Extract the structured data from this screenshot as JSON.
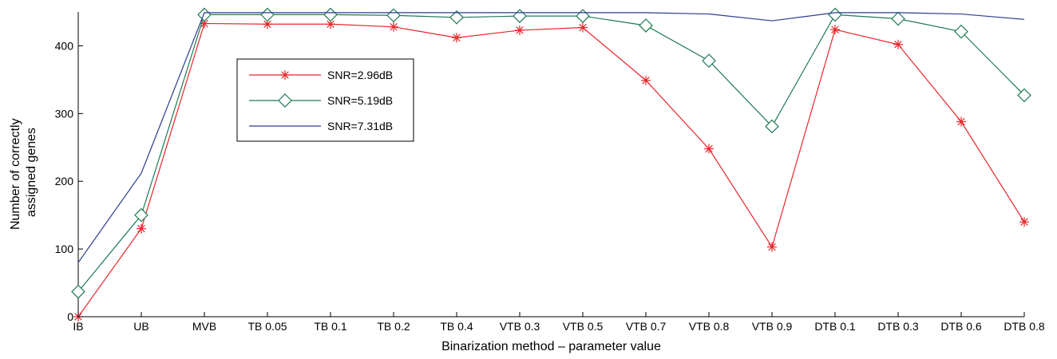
{
  "chart_data": {
    "type": "line",
    "title": "",
    "xlabel": "Binarization method – parameter value",
    "ylabel_lines": [
      "Number of correctly",
      "assigned genes"
    ],
    "categories": [
      "IB",
      "UB",
      "MVB",
      "TB 0.05",
      "TB 0.1",
      "TB 0.2",
      "TB 0.4",
      "VTB 0.3",
      "VTB 0.5",
      "VTB 0.7",
      "VTB 0.8",
      "VTB 0.9",
      "DTB 0.1",
      "DTB 0.3",
      "DTB 0.6",
      "DTB 0.8"
    ],
    "yticks": [
      0,
      100,
      200,
      300,
      400
    ],
    "ylim": [
      0,
      450
    ],
    "grid": false,
    "legend_position": "top-left-inside",
    "series": [
      {
        "name": "SNR=2.96dB",
        "color": "#e8262b",
        "marker": "asterisk",
        "values": [
          0,
          130,
          433,
          432,
          432,
          428,
          412,
          423,
          427,
          349,
          248,
          103,
          424,
          402,
          288,
          140
        ]
      },
      {
        "name": "SNR=5.19dB",
        "color": "#1f7a52",
        "marker": "diamond",
        "values": [
          37,
          150,
          446,
          446,
          446,
          445,
          442,
          444,
          444,
          430,
          378,
          281,
          446,
          440,
          421,
          327
        ]
      },
      {
        "name": "SNR=7.31dB",
        "color": "#2b3c8f",
        "marker": "none",
        "values": [
          80,
          212,
          449,
          449,
          449,
          449,
          449,
          449,
          449,
          449,
          447,
          437,
          449,
          449,
          447,
          439
        ]
      }
    ]
  }
}
